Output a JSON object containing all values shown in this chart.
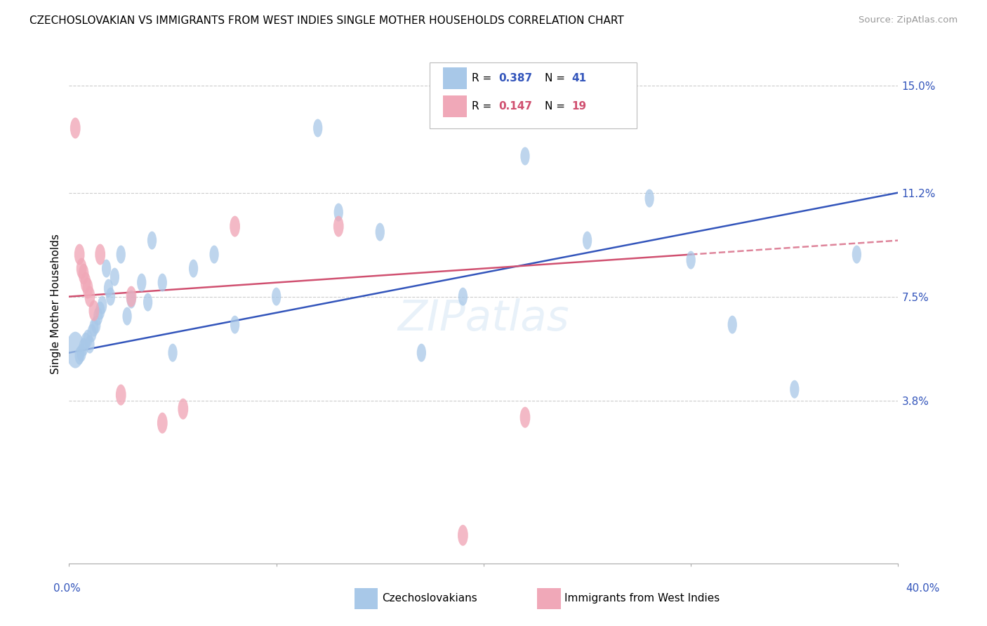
{
  "title": "CZECHOSLOVAKIAN VS IMMIGRANTS FROM WEST INDIES SINGLE MOTHER HOUSEHOLDS CORRELATION CHART",
  "source": "Source: ZipAtlas.com",
  "ylabel": "Single Mother Households",
  "ytick_values": [
    3.8,
    7.5,
    11.2,
    15.0
  ],
  "xmin": 0.0,
  "xmax": 40.0,
  "ymin": -2.0,
  "ymax": 16.5,
  "blue_color": "#a8c8e8",
  "pink_color": "#f0a8b8",
  "line_blue": "#3355bb",
  "line_pink": "#d05070",
  "watermark": "ZIPatlas",
  "blue_scatter_x": [
    0.3,
    0.5,
    0.6,
    0.7,
    0.8,
    0.9,
    1.0,
    1.1,
    1.2,
    1.3,
    1.4,
    1.5,
    1.6,
    1.8,
    1.9,
    2.0,
    2.2,
    2.5,
    2.8,
    3.0,
    3.5,
    3.8,
    4.0,
    4.5,
    5.0,
    6.0,
    7.0,
    8.0,
    10.0,
    12.0,
    13.0,
    15.0,
    17.0,
    19.0,
    22.0,
    25.0,
    28.0,
    30.0,
    32.0,
    35.0,
    38.0
  ],
  "blue_scatter_y": [
    5.6,
    5.4,
    5.5,
    5.7,
    5.9,
    6.0,
    5.8,
    6.2,
    6.4,
    6.5,
    6.8,
    7.0,
    7.2,
    8.5,
    7.8,
    7.5,
    8.2,
    9.0,
    6.8,
    7.4,
    8.0,
    7.3,
    9.5,
    8.0,
    5.5,
    8.5,
    9.0,
    6.5,
    7.5,
    13.5,
    10.5,
    9.8,
    5.5,
    7.5,
    12.5,
    9.5,
    11.0,
    8.8,
    6.5,
    4.2,
    9.0
  ],
  "pink_scatter_x": [
    0.3,
    0.5,
    0.6,
    0.7,
    0.8,
    0.9,
    1.0,
    1.2,
    1.5,
    2.5,
    3.0,
    4.5,
    5.5,
    8.0,
    13.0,
    19.0,
    22.0
  ],
  "pink_scatter_y": [
    13.5,
    9.0,
    8.5,
    8.3,
    8.0,
    7.8,
    7.5,
    7.0,
    9.0,
    4.0,
    7.5,
    3.0,
    3.5,
    10.0,
    10.0,
    -1.0,
    3.2
  ],
  "blue_line_x0": 0.0,
  "blue_line_y0": 5.5,
  "blue_line_x1": 40.0,
  "blue_line_y1": 11.2,
  "pink_line_x0": 0.0,
  "pink_line_y0": 7.5,
  "pink_line_x1": 40.0,
  "pink_line_y1": 9.5,
  "pink_solid_end": 30.0
}
